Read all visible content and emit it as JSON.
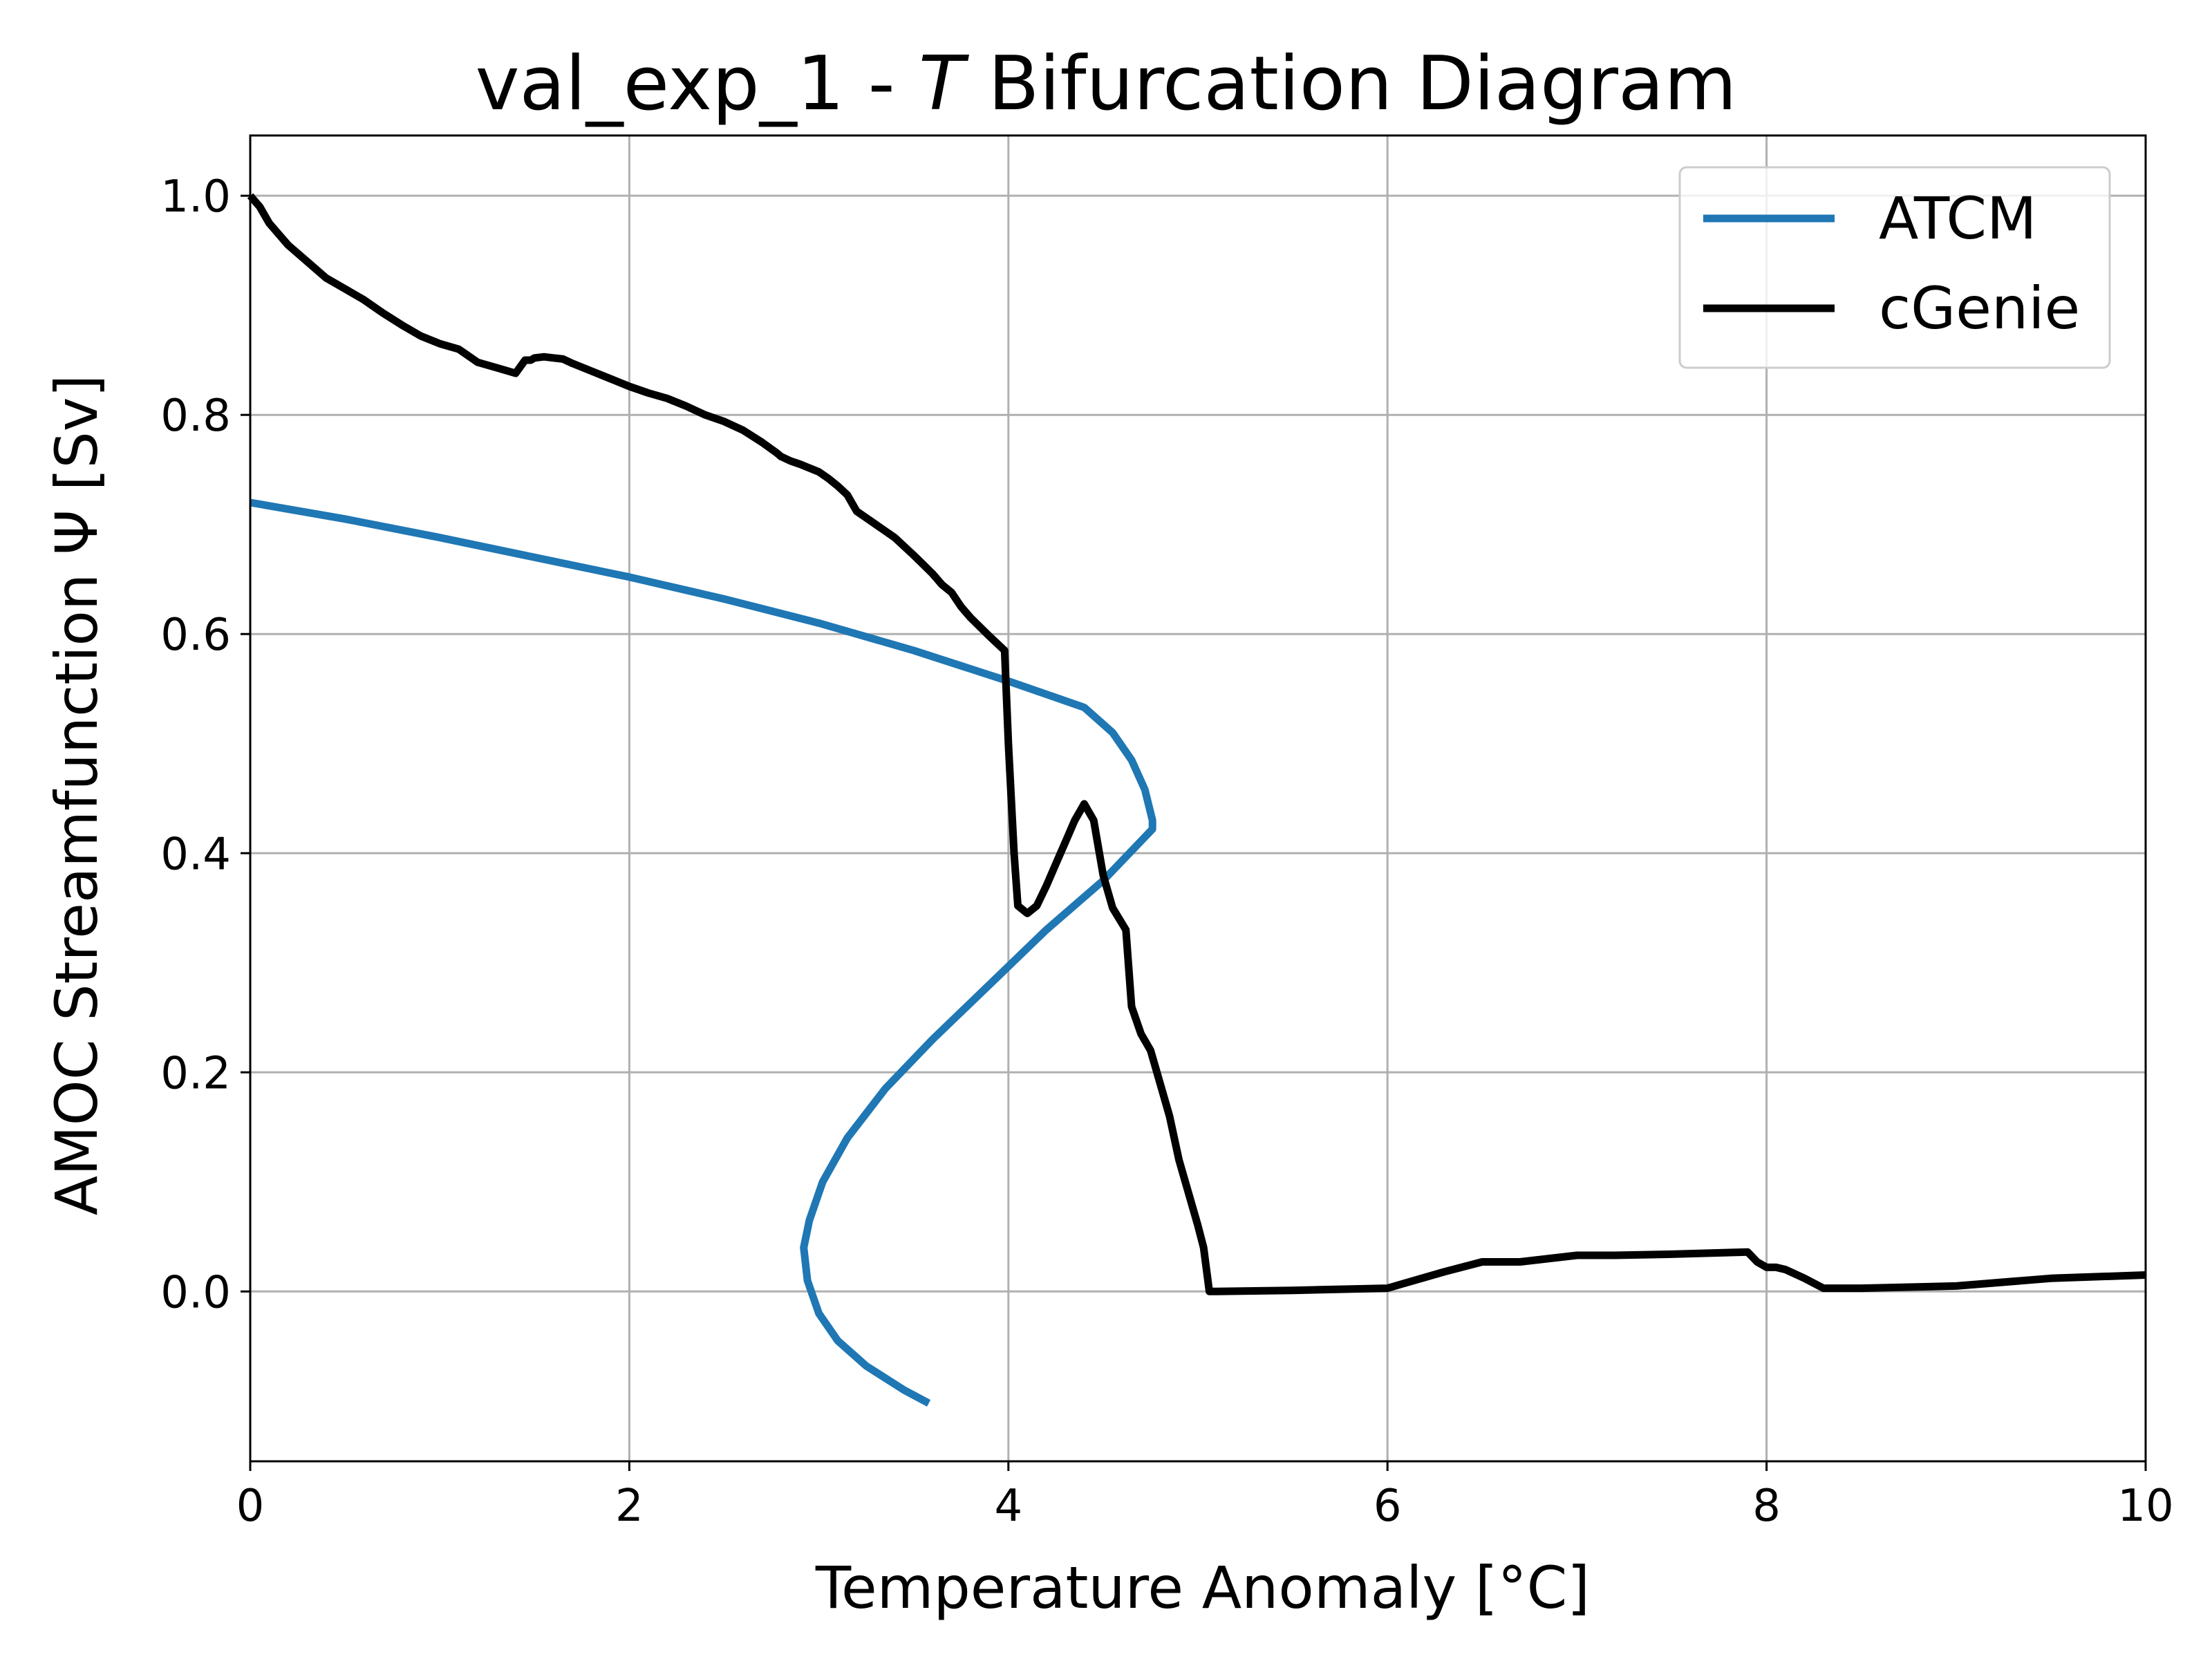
{
  "chart_data": {
    "type": "line",
    "title_prefix": "val_exp_1 - ",
    "title_italic": "T",
    "title_suffix": " Bifurcation Diagram",
    "xlabel": "Temperature Anomaly [°C]",
    "ylabel": "AMOC Streamfunction Ψ [Sv]",
    "xlim": [
      0,
      10
    ],
    "ylim": [
      -0.155,
      1.055
    ],
    "xticks": [
      0,
      2,
      4,
      6,
      8,
      10
    ],
    "xtick_labels": [
      "0",
      "2",
      "4",
      "6",
      "8",
      "10"
    ],
    "yticks": [
      0.0,
      0.2,
      0.4,
      0.6,
      0.8,
      1.0
    ],
    "ytick_labels": [
      "0.0",
      "0.2",
      "0.4",
      "0.6",
      "0.8",
      "1.0"
    ],
    "grid": true,
    "legend_position": "top-right",
    "series": [
      {
        "name": "ATCM",
        "color": "#1f77b4",
        "x": [
          0.0,
          0.5,
          1.0,
          1.5,
          2.0,
          2.5,
          3.0,
          3.5,
          4.0,
          4.4,
          4.55,
          4.65,
          4.72,
          4.76,
          4.76,
          4.5,
          4.2,
          3.9,
          3.6,
          3.35,
          3.15,
          3.02,
          2.95,
          2.92,
          2.94,
          3.0,
          3.1,
          3.25,
          3.45,
          3.58
        ],
        "y": [
          0.72,
          0.705,
          0.688,
          0.67,
          0.652,
          0.632,
          0.61,
          0.585,
          0.557,
          0.533,
          0.51,
          0.485,
          0.458,
          0.43,
          0.422,
          0.375,
          0.33,
          0.28,
          0.23,
          0.185,
          0.14,
          0.1,
          0.065,
          0.04,
          0.01,
          -0.02,
          -0.045,
          -0.068,
          -0.09,
          -0.102
        ]
      },
      {
        "name": "cGenie",
        "color": "#000000",
        "x": [
          0.0,
          0.05,
          0.1,
          0.15,
          0.2,
          0.3,
          0.4,
          0.5,
          0.6,
          0.7,
          0.8,
          0.9,
          1.0,
          1.1,
          1.2,
          1.3,
          1.4,
          1.45,
          1.48,
          1.5,
          1.55,
          1.6,
          1.65,
          1.7,
          1.8,
          1.9,
          2.0,
          2.1,
          2.2,
          2.3,
          2.4,
          2.5,
          2.6,
          2.7,
          2.78,
          2.8,
          2.85,
          2.9,
          3.0,
          3.05,
          3.1,
          3.15,
          3.2,
          3.3,
          3.4,
          3.5,
          3.6,
          3.65,
          3.7,
          3.75,
          3.8,
          3.9,
          3.98,
          4.0,
          4.03,
          4.05,
          4.1,
          4.15,
          4.2,
          4.25,
          4.3,
          4.35,
          4.4,
          4.45,
          4.5,
          4.55,
          4.62,
          4.65,
          4.7,
          4.75,
          4.8,
          4.85,
          4.9,
          4.95,
          5.0,
          5.03,
          5.06,
          5.1,
          5.5,
          6.0,
          6.1,
          6.3,
          6.5,
          6.7,
          7.0,
          7.2,
          7.5,
          7.9,
          7.95,
          8.0,
          8.05,
          8.1,
          8.2,
          8.3,
          8.5,
          9.0,
          9.5,
          10.0
        ],
        "y": [
          1.0,
          0.99,
          0.975,
          0.965,
          0.955,
          0.94,
          0.925,
          0.915,
          0.905,
          0.893,
          0.882,
          0.872,
          0.865,
          0.86,
          0.848,
          0.843,
          0.838,
          0.85,
          0.85,
          0.852,
          0.853,
          0.852,
          0.851,
          0.847,
          0.84,
          0.833,
          0.826,
          0.82,
          0.815,
          0.808,
          0.8,
          0.794,
          0.786,
          0.775,
          0.765,
          0.762,
          0.758,
          0.755,
          0.748,
          0.742,
          0.735,
          0.727,
          0.712,
          0.7,
          0.688,
          0.672,
          0.655,
          0.645,
          0.638,
          0.625,
          0.615,
          0.598,
          0.585,
          0.5,
          0.4,
          0.352,
          0.345,
          0.352,
          0.37,
          0.39,
          0.41,
          0.43,
          0.445,
          0.43,
          0.38,
          0.35,
          0.33,
          0.26,
          0.235,
          0.22,
          0.19,
          0.16,
          0.12,
          0.09,
          0.06,
          0.04,
          0.0,
          0.0,
          0.001,
          0.003,
          0.008,
          0.018,
          0.027,
          0.027,
          0.033,
          0.033,
          0.034,
          0.036,
          0.027,
          0.022,
          0.022,
          0.02,
          0.012,
          0.003,
          0.003,
          0.005,
          0.012,
          0.015
        ]
      }
    ]
  }
}
